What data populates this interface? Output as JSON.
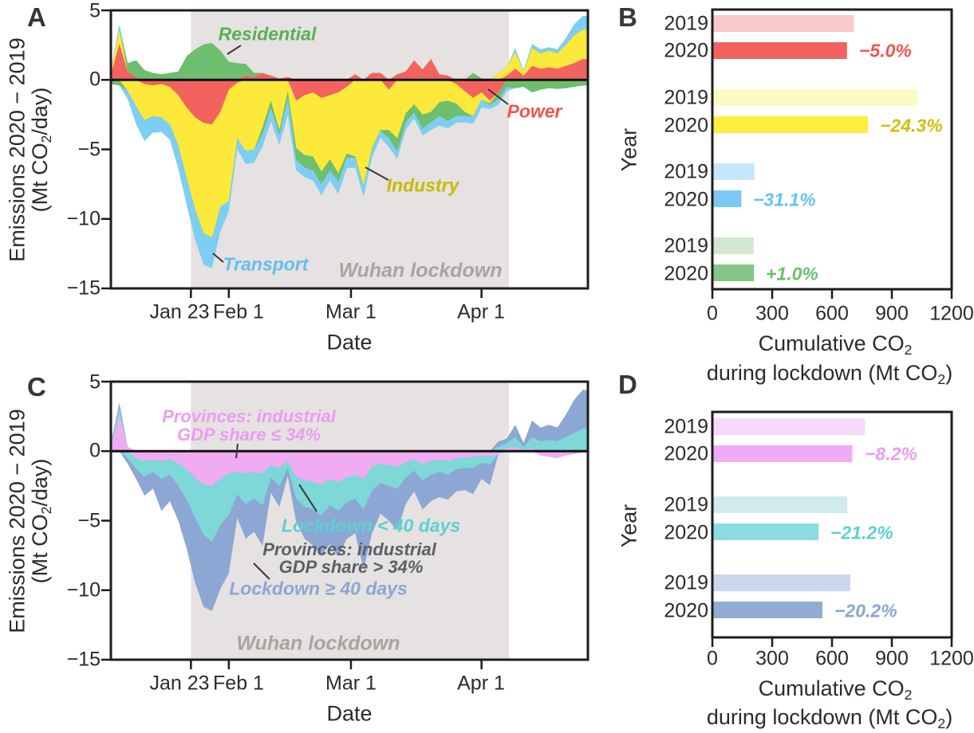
{
  "labels": {
    "panel_letters": [
      "A",
      "B",
      "C",
      "D"
    ],
    "emissions_ylabel": "Emissions 2020 − 2019",
    "unit_pre": "(Mt CO",
    "unit_sub": "2",
    "unit_post": "/day)",
    "date_xlabel": "Date",
    "year_ylabel": "Year",
    "cumulative_pre": "Cumulative CO",
    "cumulative_sub": "2",
    "lockdown_pre": "during lockdown (Mt CO",
    "lockdown_sub": "2",
    "lockdown_post": ")"
  },
  "chart_data": [
    {
      "id": "A",
      "type": "area",
      "x_start": "Jan 4",
      "x_step_days": 2,
      "ylim": [
        -15,
        5
      ],
      "yticks": [
        {
          "v": 5,
          "label": "5"
        },
        {
          "v": 0,
          "label": "0"
        },
        {
          "v": -5,
          "label": "−5"
        },
        {
          "v": -10,
          "label": "−10"
        },
        {
          "v": -15,
          "label": "−15"
        }
      ],
      "xticks": [
        {
          "day": 19,
          "label": "Jan 23"
        },
        {
          "day": 28,
          "label": "Feb 1"
        },
        {
          "day": 57,
          "label": "Mar 1"
        },
        {
          "day": 88,
          "label": "Apr 1"
        }
      ],
      "shade": {
        "from_day": 19,
        "to_day": 94.5,
        "label": "Wuhan lockdown",
        "color": "#e5e2e1"
      },
      "series": [
        {
          "name": "Power",
          "color": "#f2635f",
          "label_color": "#f2544f",
          "values": [
            0.4,
            2.6,
            0.6,
            0.2,
            -0.3,
            -0.4,
            -0.3,
            -0.5,
            -1.1,
            -2.0,
            -2.7,
            -3.1,
            -3.2,
            -2.3,
            -0.7,
            -0.2,
            0.3,
            0.2,
            0.5,
            0.3,
            0.1,
            0.2,
            -1.5,
            -1.1,
            -0.9,
            -1.3,
            -1.1,
            -0.9,
            -0.5,
            0.4,
            0.0,
            0.5,
            0.5,
            -0.7,
            0.4,
            0.6,
            1.4,
            0.75,
            1.5,
            0.4,
            0.3,
            -0.3,
            -0.8,
            -1.3,
            -0.9,
            -1.5,
            -0.9,
            0.3,
            0.8,
            0.3,
            1.0,
            0.8,
            0.9,
            0.8,
            1.0,
            1.2,
            1.5
          ]
        },
        {
          "name": "Industry",
          "color": "#fce93b",
          "label_color": "#c9ba00",
          "values": [
            0.2,
            1.0,
            -0.8,
            -1.9,
            -2.6,
            -2.2,
            -2.4,
            -2.7,
            -3.6,
            -5.0,
            -6.6,
            -7.9,
            -8.15,
            -6.8,
            -8.0,
            -4.0,
            -5.1,
            -5.0,
            -3.4,
            -1.5,
            -3.6,
            -0.8,
            -3.4,
            -4.3,
            -4.6,
            -5.3,
            -4.6,
            -5.8,
            -4.8,
            -5.5,
            -7.6,
            -4.9,
            -3.6,
            -2.9,
            -4.2,
            -2.4,
            -1.75,
            -2.5,
            -2.3,
            -1.6,
            -1.5,
            -1.4,
            -1.5,
            -1.3,
            -0.5,
            -0.2,
            0.5,
            0.6,
            1.2,
            0.3,
            1.3,
            1.1,
            1.2,
            1.1,
            1.5,
            2.0,
            2.1
          ]
        },
        {
          "name": "Residential",
          "color": "#6dbf6d",
          "label_color": "#57b157",
          "values": [
            -0.3,
            -0.4,
            0.6,
            1.2,
            0.7,
            0.5,
            0.4,
            0.5,
            0.6,
            1.7,
            2.2,
            2.55,
            2.65,
            2.1,
            1.3,
            1.2,
            0.85,
            0.3,
            -0.5,
            -0.5,
            -0.35,
            -0.55,
            -0.85,
            -0.9,
            -1.0,
            -0.9,
            -0.8,
            -0.6,
            -0.3,
            -0.1,
            -0.05,
            -0.1,
            -0.05,
            -0.6,
            -0.95,
            -0.65,
            -0.6,
            -1.0,
            -0.75,
            -1.0,
            -1.45,
            -0.9,
            -0.3,
            0.5,
            0.1,
            -0.1,
            -0.5,
            -0.5,
            -0.6,
            -0.5,
            -0.9,
            -0.7,
            -0.6,
            -0.65,
            -0.6,
            -0.5,
            -0.4
          ]
        },
        {
          "name": "Transport",
          "color": "#7ecef4",
          "label_color": "#62bff0",
          "values": [
            0.1,
            0.4,
            -0.6,
            -1.3,
            -1.5,
            -1.2,
            -1.05,
            -1.1,
            -1.7,
            -2.0,
            -2.2,
            -2.3,
            -2.2,
            -1.8,
            -0.75,
            -0.8,
            -0.95,
            -0.95,
            -0.9,
            -1.0,
            -0.75,
            -1.2,
            -0.75,
            -0.7,
            -0.75,
            -0.8,
            -0.75,
            -0.9,
            -0.75,
            -0.7,
            -0.75,
            -0.6,
            -0.5,
            -0.65,
            -0.55,
            -0.55,
            -0.45,
            -0.5,
            -0.55,
            -0.7,
            -0.55,
            -0.5,
            -0.45,
            -0.55,
            -0.6,
            -0.3,
            -0.4,
            -0.3,
            0.3,
            0.1,
            0.3,
            0.3,
            0.25,
            0.3,
            0.5,
            0.8,
            1.0
          ]
        }
      ]
    },
    {
      "id": "B",
      "type": "bar",
      "xlim": [
        0,
        1200
      ],
      "xticks": [
        {
          "v": 0,
          "label": "0"
        },
        {
          "v": 300,
          "label": "300"
        },
        {
          "v": 600,
          "label": "600"
        },
        {
          "v": 900,
          "label": "900"
        },
        {
          "v": 1200,
          "label": "1200"
        }
      ],
      "year_labels": [
        "2019",
        "2020"
      ],
      "groups": [
        {
          "name": "Power",
          "color_2019": "#f8c8ca",
          "color_2020": "#f2615e",
          "value_2019": 710,
          "value_2020": 675,
          "change": "−5.0%",
          "change_color": "#f2544f"
        },
        {
          "name": "Industry",
          "color_2019": "#fdfbc4",
          "color_2020": "#fdee3d",
          "value_2019": 1030,
          "value_2020": 780,
          "change": "−24.3%",
          "change_color": "#cfc00e"
        },
        {
          "name": "Transport",
          "color_2019": "#c6e6fb",
          "color_2020": "#7bc8f6",
          "value_2019": 210,
          "value_2020": 145,
          "change": "−31.1%",
          "change_color": "#64c3f2"
        },
        {
          "name": "Residential",
          "color_2019": "#d0e8d0",
          "color_2020": "#85c687",
          "value_2019": 207,
          "value_2020": 209,
          "change": "+1.0%",
          "change_color": "#6dbf6d"
        }
      ]
    },
    {
      "id": "C",
      "type": "area",
      "x_start": "Jan 4",
      "x_step_days": 2,
      "ylim": [
        -15,
        5
      ],
      "yticks": [
        {
          "v": 5,
          "label": "5"
        },
        {
          "v": 0,
          "label": "0"
        },
        {
          "v": -5,
          "label": "−5"
        },
        {
          "v": -10,
          "label": "−10"
        },
        {
          "v": -15,
          "label": "−15"
        }
      ],
      "xticks": [
        {
          "day": 19,
          "label": "Jan 23"
        },
        {
          "day": 28,
          "label": "Feb 1"
        },
        {
          "day": 57,
          "label": "Mar 1"
        },
        {
          "day": 88,
          "label": "Apr 1"
        }
      ],
      "shade": {
        "from_day": 19,
        "to_day": 94.5,
        "label": "Wuhan lockdown",
        "color": "#e5e2e1"
      },
      "annotations": {
        "violet1": "Provinces: industrial",
        "violet2": "GDP share ≤ 34%",
        "gray1": "Provinces: industrial",
        "gray2": "GDP share > 34%",
        "gray_color": "#5a6065"
      },
      "series": [
        {
          "name": "Provinces: industrial GDP share ≤ 34%",
          "color": "#f1abf2",
          "label_color": "#ec9cf2",
          "values": [
            0.3,
            2.6,
            0.3,
            -0.5,
            -0.7,
            -0.6,
            -0.7,
            -0.6,
            -0.9,
            -1.3,
            -1.9,
            -2.4,
            -2.5,
            -2.0,
            -1.6,
            -1.5,
            -1.6,
            -1.5,
            -1.6,
            -1.0,
            -1.2,
            -0.7,
            -1.8,
            -2.1,
            -2.2,
            -2.4,
            -2.0,
            -2.2,
            -1.9,
            -1.7,
            -2.0,
            -1.1,
            -0.9,
            -1.0,
            -1.1,
            -0.8,
            -0.6,
            -0.9,
            -0.7,
            -0.6,
            -0.7,
            -0.5,
            -0.45,
            -0.4,
            -0.3,
            -0.35,
            -0.2,
            0.2,
            0.3,
            0.1,
            0.2,
            -0.3,
            -0.4,
            -0.5,
            -0.3,
            -0.2,
            -0.1
          ]
        },
        {
          "name": "Lockdown < 40 days",
          "color": "#7ed8d8",
          "label_color": "#5fcfd1",
          "values": [
            0.15,
            0.5,
            -0.5,
            -0.8,
            -1.1,
            -0.9,
            -1.3,
            -1.1,
            -1.6,
            -2.2,
            -2.9,
            -3.6,
            -4.0,
            -3.3,
            -3.0,
            -1.6,
            -2.2,
            -1.9,
            -2.3,
            -0.9,
            -1.3,
            -0.5,
            -1.6,
            -1.9,
            -2.0,
            -2.2,
            -1.9,
            -2.1,
            -1.8,
            -1.7,
            -2.2,
            -1.7,
            -1.4,
            -1.5,
            -1.6,
            -1.1,
            -0.8,
            -1.2,
            -1.0,
            -0.9,
            -1.0,
            -0.8,
            -0.75,
            -0.8,
            -0.55,
            -0.6,
            0.3,
            0.4,
            0.7,
            0.2,
            0.8,
            0.7,
            0.8,
            0.7,
            1.0,
            1.3,
            1.6
          ]
        },
        {
          "name": "Lockdown ≥ 40 days",
          "color": "#8ca7d3",
          "label_color": "#8ba6d4",
          "values": [
            0.1,
            0.4,
            -0.4,
            -0.7,
            -1.4,
            -1.2,
            -2.3,
            -1.9,
            -2.5,
            -3.5,
            -4.7,
            -5.2,
            -5.0,
            -4.6,
            -4.2,
            -1.7,
            -2.5,
            -2.4,
            -2.9,
            -1.1,
            -1.5,
            -0.6,
            -1.7,
            -2.3,
            -2.6,
            -2.9,
            -2.8,
            -3.3,
            -2.6,
            -2.5,
            -4.3,
            -3.1,
            -2.2,
            -2.5,
            -3.0,
            -1.9,
            -1.5,
            -2.1,
            -1.9,
            -1.8,
            -1.8,
            -1.6,
            -1.6,
            -1.9,
            -1.15,
            -1.5,
            0.4,
            0.3,
            0.9,
            0.3,
            1.2,
            1.0,
            1.1,
            1.0,
            1.6,
            2.4,
            2.8
          ]
        }
      ]
    },
    {
      "id": "D",
      "type": "bar",
      "xlim": [
        0,
        1200
      ],
      "xticks": [
        {
          "v": 0,
          "label": "0"
        },
        {
          "v": 300,
          "label": "300"
        },
        {
          "v": 600,
          "label": "600"
        },
        {
          "v": 900,
          "label": "900"
        },
        {
          "v": 1200,
          "label": "1200"
        }
      ],
      "year_labels": [
        "2019",
        "2020"
      ],
      "groups": [
        {
          "name": "Provinces: industrial GDP share ≤ 34%",
          "color_2019": "#f6d8fa",
          "color_2020": "#efabf5",
          "value_2019": 765,
          "value_2020": 702,
          "change": "−8.2%",
          "change_color": "#ec9cf2"
        },
        {
          "name": "Lockdown < 40 days",
          "color_2019": "#d0ecec",
          "color_2020": "#8cdcdf",
          "value_2019": 676,
          "value_2020": 533,
          "change": "−21.2%",
          "change_color": "#5fcfd1"
        },
        {
          "name": "Lockdown ≥ 40 days",
          "color_2019": "#cdd7eb",
          "color_2020": "#92abd5",
          "value_2019": 692,
          "value_2020": 552,
          "change": "−20.2%",
          "change_color": "#8ba6d4"
        }
      ]
    }
  ]
}
